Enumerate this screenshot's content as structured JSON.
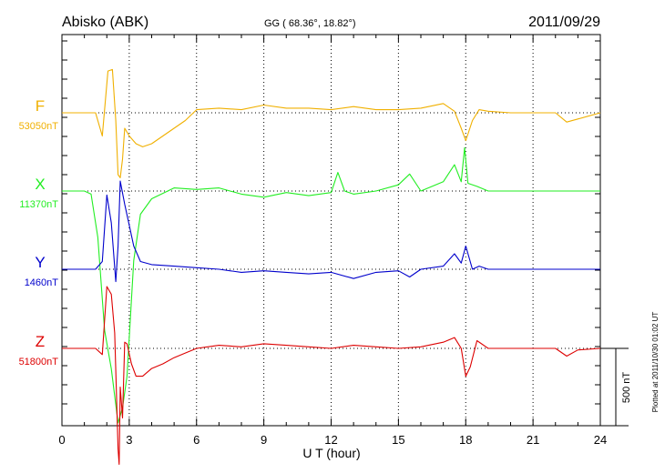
{
  "header": {
    "station": "Abisko (ABK)",
    "coords": "GG ( 68.36°,  18.82°)",
    "date": "2011/09/29"
  },
  "side_note": "Plotted at 2011/10/30 01:02 UT",
  "chart_data": {
    "type": "line",
    "xlabel": "U T (hour)",
    "xlim": [
      0,
      24
    ],
    "xticks": [
      "0",
      "3",
      "6",
      "9",
      "12",
      "15",
      "18",
      "21",
      "24"
    ],
    "scale_bar_label": "500 nT",
    "scale_bar_nT": 500,
    "series": [
      {
        "name": "F",
        "baseline_label": "53050nT",
        "color": "#f0b000",
        "x": [
          0,
          1.5,
          1.8,
          2.05,
          2.25,
          2.4,
          2.5,
          2.6,
          2.7,
          2.8,
          3.0,
          3.3,
          3.6,
          4.0,
          4.5,
          5.0,
          5.5,
          6.0,
          7.0,
          8.0,
          9.0,
          10.0,
          11.0,
          12.0,
          13.0,
          14.0,
          15.0,
          16.0,
          17.0,
          17.5,
          17.8,
          18.0,
          18.3,
          18.6,
          19.0,
          20.0,
          21.0,
          22.0,
          22.5,
          23.0,
          24.0
        ],
        "y": [
          0,
          0,
          -150,
          270,
          280,
          -50,
          -400,
          -420,
          -300,
          -100,
          -150,
          -200,
          -220,
          -200,
          -150,
          -100,
          -50,
          20,
          30,
          20,
          50,
          30,
          30,
          20,
          40,
          20,
          20,
          30,
          60,
          10,
          -100,
          -180,
          -50,
          20,
          10,
          0,
          0,
          0,
          -60,
          -40,
          0
        ]
      },
      {
        "name": "X",
        "baseline_label": "11370nT",
        "color": "#22ee22",
        "x": [
          0,
          1.0,
          1.3,
          1.6,
          1.9,
          2.2,
          2.5,
          2.7,
          2.9,
          3.2,
          3.5,
          4.0,
          5.0,
          6.0,
          7.0,
          8.0,
          9.0,
          10.0,
          11.0,
          12.0,
          12.3,
          12.6,
          13.0,
          14.0,
          15.0,
          15.5,
          16.0,
          17.0,
          17.5,
          17.8,
          17.95,
          18.1,
          18.5,
          19.0,
          20.0,
          21.0,
          22.0,
          23.0,
          24.0
        ],
        "y": [
          0,
          0,
          -20,
          -300,
          -900,
          -1150,
          -1500,
          -1400,
          -1200,
          -450,
          -150,
          -50,
          20,
          10,
          20,
          -20,
          -40,
          -10,
          -30,
          -10,
          120,
          0,
          -20,
          0,
          40,
          110,
          0,
          60,
          170,
          60,
          280,
          50,
          30,
          0,
          0,
          0,
          0,
          0,
          0
        ]
      },
      {
        "name": "Y",
        "baseline_label": "1460nT",
        "color": "#0000cc",
        "x": [
          0,
          1.5,
          1.8,
          2.0,
          2.2,
          2.4,
          2.5,
          2.6,
          2.8,
          2.95,
          3.2,
          3.5,
          4.0,
          5.0,
          6.0,
          7.0,
          8.0,
          9.0,
          10.0,
          11.0,
          12.0,
          13.0,
          14.0,
          15.0,
          15.5,
          16.0,
          17.0,
          17.5,
          17.8,
          18.0,
          18.3,
          18.6,
          19.0,
          20.0,
          21.0,
          22.0,
          23.0,
          24.0
        ],
        "y": [
          0,
          0,
          50,
          480,
          300,
          -80,
          150,
          570,
          420,
          320,
          150,
          50,
          30,
          20,
          10,
          0,
          -20,
          -10,
          -20,
          -30,
          -20,
          -60,
          -20,
          -10,
          -50,
          0,
          20,
          100,
          40,
          150,
          0,
          20,
          0,
          0,
          0,
          0,
          0,
          0
        ]
      },
      {
        "name": "Z",
        "baseline_label": "51800nT",
        "color": "#dd0000",
        "x": [
          0,
          1.5,
          1.8,
          2.0,
          2.2,
          2.35,
          2.5,
          2.55,
          2.6,
          2.7,
          2.8,
          2.9,
          3.1,
          3.3,
          3.6,
          4.0,
          4.5,
          5.0,
          5.5,
          6.0,
          7.0,
          8.0,
          9.0,
          10.0,
          11.0,
          12.0,
          13.0,
          14.0,
          15.0,
          16.0,
          17.0,
          17.5,
          17.8,
          18.0,
          18.2,
          18.5,
          19.0,
          20.0,
          21.0,
          22.0,
          22.5,
          23.0,
          24.0
        ],
        "y": [
          0,
          0,
          -40,
          400,
          350,
          100,
          -650,
          -750,
          -250,
          -450,
          40,
          30,
          -100,
          -180,
          -180,
          -130,
          -100,
          -60,
          -30,
          0,
          20,
          10,
          30,
          20,
          10,
          0,
          20,
          10,
          0,
          10,
          40,
          70,
          0,
          -180,
          -120,
          50,
          0,
          0,
          0,
          0,
          -50,
          -10,
          0
        ]
      }
    ]
  }
}
